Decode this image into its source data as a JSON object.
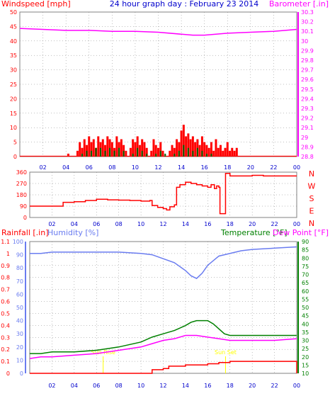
{
  "title": "24 hour graph day : February 23 2014",
  "colors": {
    "wind": "#ff0000",
    "wind_avg": "#006400",
    "pressure": "#ff00ff",
    "direction": "#ff0000",
    "rain": "#ff0000",
    "humidity": "#6a7cf0",
    "temperature": "#008000",
    "dewpoint": "#ff00ff",
    "axis_blue": "#0000cc",
    "sun": "#ffff00",
    "grid": "#808080",
    "border": "#808080"
  },
  "chart_data": [
    {
      "type": "line",
      "name": "wind-pressure",
      "title": "24 hour graph day : February 23 2014",
      "y_left_label": "Windspeed [mph]",
      "y_right_label": "Barometer [.in]",
      "xlim": [
        0,
        24
      ],
      "x_ticks": [
        "02",
        "04",
        "06",
        "08",
        "10",
        "12",
        "14",
        "16",
        "18",
        "20",
        "22",
        "00"
      ],
      "ylim_left": [
        0,
        50
      ],
      "left_ticks": [
        "0",
        "5",
        "10",
        "15",
        "20",
        "25",
        "30",
        "35",
        "40",
        "45",
        "50"
      ],
      "ylim_right": [
        28.8,
        30.3
      ],
      "right_ticks": [
        "28.8",
        "28.9",
        "29",
        "29.1",
        "29.2",
        "29.3",
        "29.4",
        "29.5",
        "29.6",
        "29.7",
        "29.8",
        "29.9",
        "30",
        "30.1",
        "30.2",
        "30.3"
      ],
      "grid": true,
      "series": [
        {
          "key": "wind_gust",
          "axis": "left",
          "x": [
            4.0,
            4.2,
            5.0,
            5.2,
            5.4,
            5.6,
            5.8,
            6.0,
            6.2,
            6.4,
            6.6,
            6.8,
            7.0,
            7.2,
            7.4,
            7.6,
            7.8,
            8.0,
            8.2,
            8.4,
            8.6,
            8.8,
            9.0,
            9.2,
            9.4,
            9.6,
            9.8,
            10.0,
            10.2,
            10.4,
            10.6,
            10.8,
            11.0,
            11.2,
            11.4,
            11.6,
            11.8,
            12.0,
            12.2,
            12.4,
            12.6,
            12.8,
            13.0,
            13.2,
            13.4,
            13.6,
            13.8,
            14.0,
            14.2,
            14.4,
            14.6,
            14.8,
            15.0,
            15.2,
            15.4,
            15.6,
            15.8,
            16.0,
            16.2,
            16.4,
            16.6,
            16.8,
            17.0,
            17.2,
            17.4,
            17.6,
            17.8,
            18.0,
            18.2,
            18.4,
            18.6,
            18.8,
            19.0
          ],
          "values": [
            0,
            1,
            2,
            5,
            3,
            6,
            4,
            7,
            5,
            6,
            3,
            7,
            5,
            6,
            4,
            7,
            6,
            5,
            3,
            7,
            5,
            6,
            4,
            2,
            0,
            3,
            6,
            5,
            7,
            4,
            6,
            5,
            3,
            0,
            2,
            6,
            4,
            3,
            5,
            2,
            0,
            0,
            2,
            4,
            3,
            6,
            5,
            9,
            11,
            7,
            8,
            6,
            7,
            5,
            6,
            4,
            7,
            5,
            4,
            3,
            5,
            2,
            6,
            3,
            4,
            2,
            3,
            5,
            2,
            3,
            2,
            3,
            0
          ]
        },
        {
          "key": "wind_avg",
          "axis": "left",
          "x": [
            5.4,
            5.8,
            6.2,
            6.6,
            7.0,
            7.4,
            7.8,
            8.2,
            8.6,
            9.0,
            9.4,
            9.8,
            10.2,
            10.6,
            11.0,
            11.4,
            11.8,
            12.2,
            12.6,
            13.0,
            13.4,
            13.8,
            14.2,
            14.6,
            15.0,
            15.4,
            15.8,
            16.2,
            16.6,
            17.0,
            17.4
          ],
          "values": [
            1,
            2,
            2,
            3,
            3,
            2,
            3,
            2,
            3,
            2,
            0,
            1,
            3,
            2,
            1,
            0,
            1,
            2,
            1,
            0,
            1,
            2,
            4,
            3,
            2,
            3,
            2,
            1,
            1,
            0,
            0
          ]
        },
        {
          "key": "pressure",
          "axis": "right",
          "x": [
            0,
            2,
            4,
            6,
            8,
            10,
            12,
            14,
            15,
            16,
            17,
            18,
            20,
            22,
            24
          ],
          "values": [
            30.13,
            30.12,
            30.11,
            30.11,
            30.1,
            30.1,
            30.09,
            30.07,
            30.06,
            30.06,
            30.07,
            30.08,
            30.09,
            30.1,
            30.12
          ]
        }
      ]
    },
    {
      "type": "line",
      "name": "wind-direction",
      "ylim": [
        0,
        360
      ],
      "y_ticks": [
        "0",
        "90",
        "180",
        "270",
        "360"
      ],
      "compass": [
        "N",
        "W",
        "S",
        "E",
        "N"
      ],
      "series": [
        {
          "key": "direction",
          "x": [
            0,
            1,
            2,
            2.9,
            3.0,
            4,
            5,
            6,
            7,
            8,
            9,
            10,
            10.8,
            11.0,
            11.5,
            12.0,
            12.3,
            12.6,
            13.0,
            13.2,
            13.5,
            14.0,
            14.5,
            15.0,
            15.5,
            16.0,
            16.3,
            16.6,
            16.8,
            17.0,
            17.1,
            17.5,
            17.6,
            18,
            19,
            20,
            21,
            22,
            23,
            24
          ],
          "values": [
            90,
            90,
            90,
            90,
            120,
            125,
            135,
            145,
            140,
            138,
            135,
            130,
            135,
            95,
            80,
            70,
            60,
            85,
            100,
            240,
            260,
            280,
            270,
            260,
            250,
            240,
            260,
            230,
            250,
            240,
            30,
            30,
            350,
            330,
            330,
            335,
            330,
            330,
            330,
            330
          ]
        }
      ]
    },
    {
      "type": "line",
      "name": "rain-humidity-temperature",
      "y_left1_label": "Rainfall [.in]",
      "y_left2_label": "Humidity [%]",
      "y_right1_label": "Temperature [°F]",
      "y_right2_label": "Dew Point [°F]",
      "rain_ticks": [
        "0",
        "0.1",
        "0.2",
        "0.3",
        "0.4",
        "0.5",
        "0.6",
        "0.7",
        "0.8",
        "0.9",
        "1",
        "1.1"
      ],
      "ylim_rain": [
        0,
        1.1
      ],
      "humidity_ticks": [
        "0",
        "10",
        "20",
        "30",
        "40",
        "50",
        "60",
        "70",
        "80",
        "90",
        "100"
      ],
      "ylim_humidity": [
        0,
        100
      ],
      "temp_ticks": [
        "10",
        "15",
        "20",
        "25",
        "30",
        "35",
        "40",
        "45",
        "50",
        "55",
        "60",
        "65",
        "70",
        "75",
        "80",
        "85",
        "90"
      ],
      "ylim_temp": [
        10,
        90
      ],
      "sun_labels": [
        "Sun Rise",
        "Sun Set"
      ],
      "sun_x": [
        6.6,
        17.6
      ],
      "series": [
        {
          "key": "humidity",
          "axis": "humidity",
          "x": [
            0,
            1,
            2,
            4,
            6,
            8,
            10,
            11,
            12,
            13,
            14,
            14.5,
            15,
            15.5,
            16,
            17,
            18,
            19,
            20,
            22,
            24
          ],
          "values": [
            91,
            91,
            92,
            92,
            92,
            92,
            91,
            90,
            87,
            84,
            78,
            74,
            72,
            76,
            82,
            89,
            91,
            93,
            94,
            95,
            96
          ]
        },
        {
          "key": "temperature",
          "axis": "temp",
          "x": [
            0,
            1,
            2,
            4,
            6,
            8,
            10,
            11,
            12,
            13,
            14,
            14.5,
            15,
            15.5,
            16,
            16.5,
            17,
            17.5,
            18,
            20,
            22,
            24
          ],
          "values": [
            22,
            22,
            23,
            23,
            24,
            26,
            29,
            32,
            34,
            36,
            39,
            41,
            42,
            42,
            42,
            40,
            37,
            34,
            33,
            33,
            33,
            33
          ]
        },
        {
          "key": "dewpoint",
          "axis": "temp",
          "x": [
            0,
            1,
            2,
            4,
            6,
            8,
            10,
            11,
            12,
            13,
            14,
            14.5,
            15,
            16,
            17,
            18,
            20,
            22,
            24
          ],
          "values": [
            19,
            20,
            20,
            21,
            22,
            24,
            26,
            28,
            30,
            31,
            33,
            33,
            33,
            32,
            31,
            30,
            30,
            30,
            31
          ]
        },
        {
          "key": "rain",
          "axis": "rain",
          "x": [
            0,
            10.8,
            11.0,
            12.0,
            12.5,
            14.0,
            16.0,
            17.0,
            18.0,
            20.0,
            23.9,
            24.0
          ],
          "values": [
            0,
            0,
            0.03,
            0.04,
            0.06,
            0.07,
            0.08,
            0.09,
            0.1,
            0.1,
            0.1,
            0.0
          ]
        }
      ]
    }
  ]
}
